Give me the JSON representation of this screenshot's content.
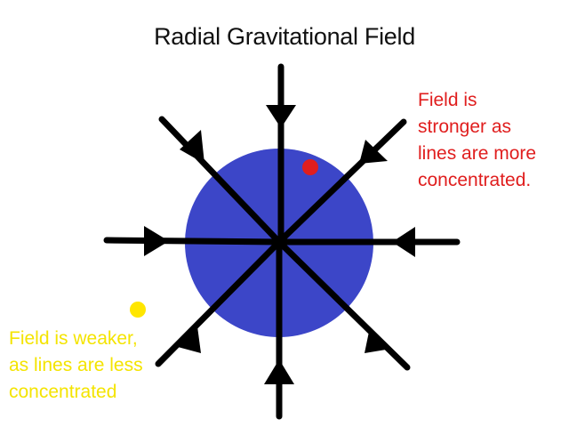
{
  "title": "Radial Gravitational Field",
  "colors": {
    "mass": "#3c46c8",
    "field_lines": "#000000",
    "strong_marker": "#e01e1e",
    "weak_marker": "#ffe600",
    "strong_text": "#e01e1e",
    "weak_text": "#f4e400"
  },
  "annotations": {
    "strong": {
      "lines": [
        "Field is",
        "stronger as",
        "lines are more",
        "concentrated."
      ]
    },
    "weak": {
      "lines": [
        "Field is weaker,",
        "as lines are less",
        "concentrated"
      ]
    }
  },
  "field_line_directions": [
    "up",
    "down",
    "left",
    "right",
    "up-left",
    "up-right",
    "down-left",
    "down-right"
  ],
  "field_direction": "inward"
}
